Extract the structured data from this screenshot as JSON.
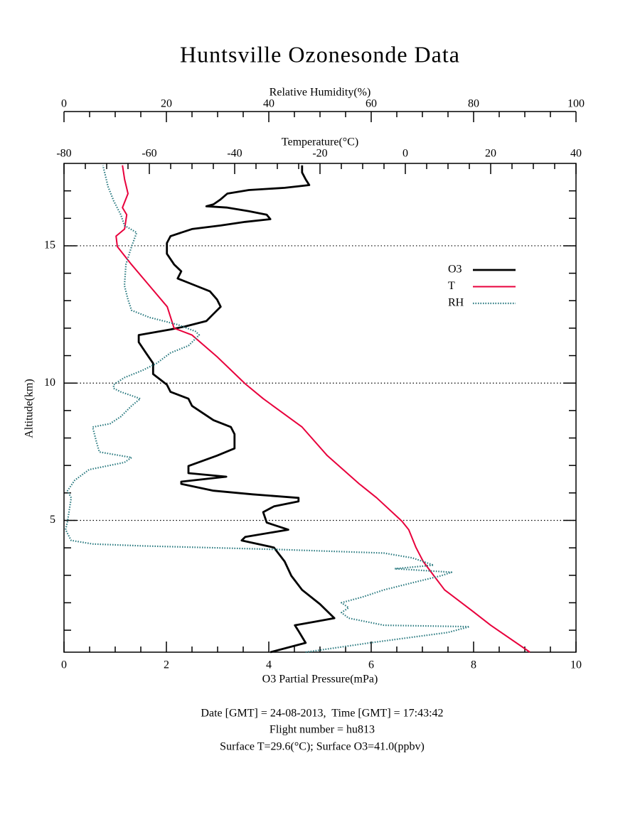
{
  "chart_data": {
    "type": "line",
    "title": "Huntsville Ozonesonde Data",
    "xlabel": "O3 Partial Pressure(mPa)",
    "xlim": [
      0,
      10
    ],
    "xticks": [
      0,
      2,
      4,
      6,
      8,
      10
    ],
    "xminorticks": [
      0.5,
      1,
      1.5,
      2.5,
      3,
      3.5,
      4.5,
      5,
      5.5,
      6.5,
      7,
      7.5,
      8.5,
      9,
      9.5
    ],
    "x2label": "Temperature(°C)",
    "x2lim": [
      -80,
      40
    ],
    "x2ticks": [
      -80,
      -60,
      -40,
      -20,
      0,
      20,
      40
    ],
    "x2minorticks": [
      -75,
      -70,
      -65,
      -55,
      -50,
      -45,
      -35,
      -30,
      -25,
      -15,
      -10,
      -5,
      5,
      10,
      15,
      25,
      30,
      35
    ],
    "x3label": "Relative Humidity(%)",
    "x3lim": [
      0,
      100
    ],
    "x3ticks": [
      0,
      20,
      40,
      60,
      80,
      100
    ],
    "x3minorticks": [
      5,
      10,
      15,
      25,
      30,
      35,
      45,
      50,
      55,
      65,
      70,
      75,
      85,
      90,
      95
    ],
    "ylabel": "Altitude(km)",
    "ylim": [
      0.2,
      18
    ],
    "yticks": [
      5,
      10,
      15
    ],
    "yminorticks": [
      1,
      2,
      3,
      4,
      6,
      7,
      8,
      9,
      11,
      12,
      13,
      14,
      16,
      17
    ],
    "grid": true,
    "legend": "right",
    "series": [
      {
        "name": "O3",
        "color": "#000000",
        "axis": "x",
        "style": "solid",
        "altitude": [
          0.2,
          0.54,
          0.97,
          1.18,
          1.31,
          1.44,
          1.95,
          2.47,
          2.98,
          3.5,
          4.01,
          4.27,
          4.4,
          4.66,
          4.92,
          5.3,
          5.51,
          5.69,
          5.82,
          5.95,
          6.08,
          6.33,
          6.41,
          6.59,
          6.72,
          6.98,
          7.36,
          7.62,
          8.14,
          8.4,
          8.65,
          9.17,
          9.43,
          9.68,
          9.94,
          10.33,
          10.72,
          11.1,
          11.49,
          11.75,
          11.95,
          12.06,
          12.26,
          12.52,
          12.78,
          13.04,
          13.34,
          13.55,
          13.81,
          14.07,
          14.32,
          14.71,
          15.1,
          15.35,
          15.61,
          15.74,
          15.87,
          15.97,
          16.13,
          16.26,
          16.39,
          16.44,
          16.51,
          16.69,
          16.9,
          17.03,
          17.11,
          17.21,
          17.42,
          17.67,
          17.93
        ],
        "values": [
          4.03,
          4.72,
          4.58,
          4.51,
          4.9,
          5.28,
          5.0,
          4.65,
          4.44,
          4.31,
          4.1,
          3.47,
          3.54,
          4.38,
          3.96,
          3.89,
          4.1,
          4.58,
          4.58,
          3.68,
          2.92,
          2.29,
          2.29,
          3.17,
          2.43,
          2.43,
          2.99,
          3.33,
          3.33,
          3.26,
          2.92,
          2.5,
          2.43,
          2.08,
          2.01,
          1.74,
          1.74,
          1.6,
          1.46,
          1.46,
          2.08,
          2.36,
          2.78,
          2.92,
          3.06,
          2.99,
          2.85,
          2.57,
          2.22,
          2.29,
          2.15,
          2.01,
          2.01,
          2.08,
          2.5,
          3.06,
          3.54,
          4.03,
          3.96,
          3.61,
          3.19,
          2.78,
          2.92,
          3.06,
          3.19,
          3.61,
          4.31,
          4.79,
          4.72,
          4.65,
          4.65
        ]
      },
      {
        "name": "T",
        "color": "#e8003c",
        "axis": "x2",
        "style": "solid",
        "altitude": [
          0.2,
          1.18,
          1.69,
          2.47,
          2.98,
          3.5,
          4.01,
          4.66,
          4.97,
          5.82,
          6.33,
          7.36,
          8.4,
          9.43,
          9.97,
          10.97,
          11.75,
          12.0,
          12.78,
          13.55,
          14.32,
          14.97,
          15.35,
          15.61,
          16.13,
          16.39,
          16.9,
          17.42,
          17.93
        ],
        "values": [
          29.2,
          20,
          15.8,
          9.2,
          6.7,
          4.2,
          2.5,
          0.8,
          -0.8,
          -6.7,
          -10.8,
          -18.3,
          -24.2,
          -33.3,
          -37.5,
          -44.2,
          -50,
          -54.2,
          -55.8,
          -60,
          -64.2,
          -67.5,
          -67.8,
          -65.8,
          -65.3,
          -66.3,
          -65,
          -65.8,
          -66.3
        ]
      },
      {
        "name": "RH",
        "color": "#2a7a80",
        "axis": "x3",
        "style": "dotted",
        "altitude": [
          0.2,
          0.54,
          0.92,
          1.13,
          1.18,
          1.44,
          1.64,
          1.82,
          2.0,
          2.21,
          2.47,
          2.73,
          2.98,
          3.11,
          3.24,
          3.37,
          3.63,
          3.81,
          3.94,
          4.07,
          4.14,
          4.27,
          4.66,
          4.97,
          5.82,
          6.08,
          6.46,
          6.85,
          7.11,
          7.29,
          7.49,
          7.88,
          8.4,
          8.52,
          8.78,
          9.17,
          9.43,
          9.68,
          9.81,
          9.94,
          10.2,
          10.46,
          10.72,
          11.1,
          11.36,
          11.75,
          11.88,
          12.13,
          12.39,
          12.65,
          13.04,
          13.55,
          14.32,
          14.97,
          15.48,
          15.74,
          16.13,
          16.64,
          17.16,
          17.93
        ],
        "values": [
          47.2,
          59.7,
          75,
          79.2,
          62.5,
          55.6,
          54.2,
          55.6,
          54.2,
          58.3,
          62.5,
          68.1,
          73.6,
          75.7,
          64.6,
          72.2,
          68.1,
          62.5,
          41.7,
          15.3,
          5.6,
          1.4,
          0.3,
          0.7,
          1.4,
          0.7,
          2.1,
          4.9,
          11.8,
          13.2,
          6.9,
          6.3,
          5.6,
          9.0,
          11.1,
          13.2,
          14.9,
          11.1,
          9.7,
          9.7,
          11.8,
          15.3,
          18.1,
          20.8,
          24.3,
          26.4,
          25.7,
          22.2,
          16.7,
          13.2,
          12.5,
          11.8,
          12.1,
          13.2,
          14.2,
          11.8,
          11.1,
          9.7,
          8.6,
          7.6
        ]
      }
    ],
    "notes": [
      "Date [GMT] = 24-08-2013,  Time [GMT] = 17:43:42",
      "Flight number = hu813",
      "Surface T=29.6(°C); Surface O3=41.0(ppbv)"
    ]
  }
}
